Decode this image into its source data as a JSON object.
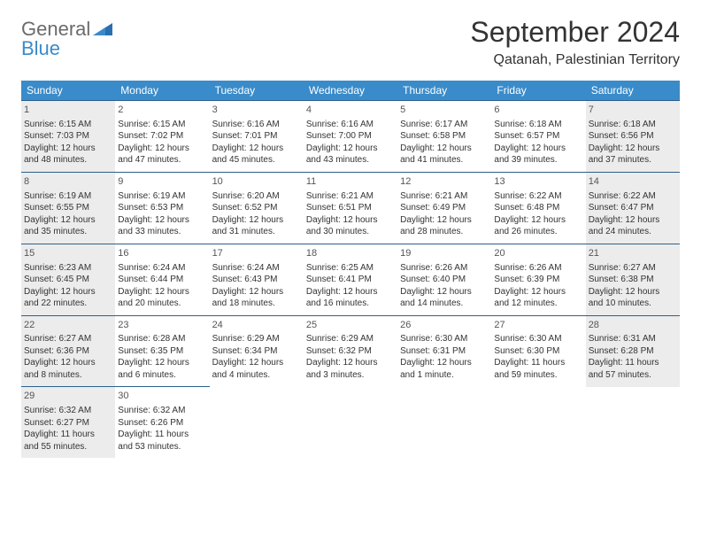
{
  "logo": {
    "general": "General",
    "blue": "Blue"
  },
  "title": "September 2024",
  "location": "Qatanah, Palestinian Territory",
  "day_headers": [
    "Sunday",
    "Monday",
    "Tuesday",
    "Wednesday",
    "Thursday",
    "Friday",
    "Saturday"
  ],
  "colors": {
    "header_bg": "#3a8bc9",
    "header_text": "#ffffff",
    "row_border": "#2f5f8a",
    "shaded_bg": "#ececec",
    "text": "#333333",
    "logo_gray": "#6b6b6b",
    "logo_blue": "#3a8bc9",
    "page_bg": "#ffffff"
  },
  "weeks": [
    [
      {
        "day": "1",
        "shaded": true,
        "sunrise": "Sunrise: 6:15 AM",
        "sunset": "Sunset: 7:03 PM",
        "daylight1": "Daylight: 12 hours",
        "daylight2": "and 48 minutes."
      },
      {
        "day": "2",
        "shaded": false,
        "sunrise": "Sunrise: 6:15 AM",
        "sunset": "Sunset: 7:02 PM",
        "daylight1": "Daylight: 12 hours",
        "daylight2": "and 47 minutes."
      },
      {
        "day": "3",
        "shaded": false,
        "sunrise": "Sunrise: 6:16 AM",
        "sunset": "Sunset: 7:01 PM",
        "daylight1": "Daylight: 12 hours",
        "daylight2": "and 45 minutes."
      },
      {
        "day": "4",
        "shaded": false,
        "sunrise": "Sunrise: 6:16 AM",
        "sunset": "Sunset: 7:00 PM",
        "daylight1": "Daylight: 12 hours",
        "daylight2": "and 43 minutes."
      },
      {
        "day": "5",
        "shaded": false,
        "sunrise": "Sunrise: 6:17 AM",
        "sunset": "Sunset: 6:58 PM",
        "daylight1": "Daylight: 12 hours",
        "daylight2": "and 41 minutes."
      },
      {
        "day": "6",
        "shaded": false,
        "sunrise": "Sunrise: 6:18 AM",
        "sunset": "Sunset: 6:57 PM",
        "daylight1": "Daylight: 12 hours",
        "daylight2": "and 39 minutes."
      },
      {
        "day": "7",
        "shaded": true,
        "sunrise": "Sunrise: 6:18 AM",
        "sunset": "Sunset: 6:56 PM",
        "daylight1": "Daylight: 12 hours",
        "daylight2": "and 37 minutes."
      }
    ],
    [
      {
        "day": "8",
        "shaded": true,
        "sunrise": "Sunrise: 6:19 AM",
        "sunset": "Sunset: 6:55 PM",
        "daylight1": "Daylight: 12 hours",
        "daylight2": "and 35 minutes."
      },
      {
        "day": "9",
        "shaded": false,
        "sunrise": "Sunrise: 6:19 AM",
        "sunset": "Sunset: 6:53 PM",
        "daylight1": "Daylight: 12 hours",
        "daylight2": "and 33 minutes."
      },
      {
        "day": "10",
        "shaded": false,
        "sunrise": "Sunrise: 6:20 AM",
        "sunset": "Sunset: 6:52 PM",
        "daylight1": "Daylight: 12 hours",
        "daylight2": "and 31 minutes."
      },
      {
        "day": "11",
        "shaded": false,
        "sunrise": "Sunrise: 6:21 AM",
        "sunset": "Sunset: 6:51 PM",
        "daylight1": "Daylight: 12 hours",
        "daylight2": "and 30 minutes."
      },
      {
        "day": "12",
        "shaded": false,
        "sunrise": "Sunrise: 6:21 AM",
        "sunset": "Sunset: 6:49 PM",
        "daylight1": "Daylight: 12 hours",
        "daylight2": "and 28 minutes."
      },
      {
        "day": "13",
        "shaded": false,
        "sunrise": "Sunrise: 6:22 AM",
        "sunset": "Sunset: 6:48 PM",
        "daylight1": "Daylight: 12 hours",
        "daylight2": "and 26 minutes."
      },
      {
        "day": "14",
        "shaded": true,
        "sunrise": "Sunrise: 6:22 AM",
        "sunset": "Sunset: 6:47 PM",
        "daylight1": "Daylight: 12 hours",
        "daylight2": "and 24 minutes."
      }
    ],
    [
      {
        "day": "15",
        "shaded": true,
        "sunrise": "Sunrise: 6:23 AM",
        "sunset": "Sunset: 6:45 PM",
        "daylight1": "Daylight: 12 hours",
        "daylight2": "and 22 minutes."
      },
      {
        "day": "16",
        "shaded": false,
        "sunrise": "Sunrise: 6:24 AM",
        "sunset": "Sunset: 6:44 PM",
        "daylight1": "Daylight: 12 hours",
        "daylight2": "and 20 minutes."
      },
      {
        "day": "17",
        "shaded": false,
        "sunrise": "Sunrise: 6:24 AM",
        "sunset": "Sunset: 6:43 PM",
        "daylight1": "Daylight: 12 hours",
        "daylight2": "and 18 minutes."
      },
      {
        "day": "18",
        "shaded": false,
        "sunrise": "Sunrise: 6:25 AM",
        "sunset": "Sunset: 6:41 PM",
        "daylight1": "Daylight: 12 hours",
        "daylight2": "and 16 minutes."
      },
      {
        "day": "19",
        "shaded": false,
        "sunrise": "Sunrise: 6:26 AM",
        "sunset": "Sunset: 6:40 PM",
        "daylight1": "Daylight: 12 hours",
        "daylight2": "and 14 minutes."
      },
      {
        "day": "20",
        "shaded": false,
        "sunrise": "Sunrise: 6:26 AM",
        "sunset": "Sunset: 6:39 PM",
        "daylight1": "Daylight: 12 hours",
        "daylight2": "and 12 minutes."
      },
      {
        "day": "21",
        "shaded": true,
        "sunrise": "Sunrise: 6:27 AM",
        "sunset": "Sunset: 6:38 PM",
        "daylight1": "Daylight: 12 hours",
        "daylight2": "and 10 minutes."
      }
    ],
    [
      {
        "day": "22",
        "shaded": true,
        "sunrise": "Sunrise: 6:27 AM",
        "sunset": "Sunset: 6:36 PM",
        "daylight1": "Daylight: 12 hours",
        "daylight2": "and 8 minutes."
      },
      {
        "day": "23",
        "shaded": false,
        "sunrise": "Sunrise: 6:28 AM",
        "sunset": "Sunset: 6:35 PM",
        "daylight1": "Daylight: 12 hours",
        "daylight2": "and 6 minutes."
      },
      {
        "day": "24",
        "shaded": false,
        "sunrise": "Sunrise: 6:29 AM",
        "sunset": "Sunset: 6:34 PM",
        "daylight1": "Daylight: 12 hours",
        "daylight2": "and 4 minutes."
      },
      {
        "day": "25",
        "shaded": false,
        "sunrise": "Sunrise: 6:29 AM",
        "sunset": "Sunset: 6:32 PM",
        "daylight1": "Daylight: 12 hours",
        "daylight2": "and 3 minutes."
      },
      {
        "day": "26",
        "shaded": false,
        "sunrise": "Sunrise: 6:30 AM",
        "sunset": "Sunset: 6:31 PM",
        "daylight1": "Daylight: 12 hours",
        "daylight2": "and 1 minute."
      },
      {
        "day": "27",
        "shaded": false,
        "sunrise": "Sunrise: 6:30 AM",
        "sunset": "Sunset: 6:30 PM",
        "daylight1": "Daylight: 11 hours",
        "daylight2": "and 59 minutes."
      },
      {
        "day": "28",
        "shaded": true,
        "sunrise": "Sunrise: 6:31 AM",
        "sunset": "Sunset: 6:28 PM",
        "daylight1": "Daylight: 11 hours",
        "daylight2": "and 57 minutes."
      }
    ],
    [
      {
        "day": "29",
        "shaded": true,
        "sunrise": "Sunrise: 6:32 AM",
        "sunset": "Sunset: 6:27 PM",
        "daylight1": "Daylight: 11 hours",
        "daylight2": "and 55 minutes."
      },
      {
        "day": "30",
        "shaded": false,
        "sunrise": "Sunrise: 6:32 AM",
        "sunset": "Sunset: 6:26 PM",
        "daylight1": "Daylight: 11 hours",
        "daylight2": "and 53 minutes."
      },
      null,
      null,
      null,
      null,
      null
    ]
  ]
}
